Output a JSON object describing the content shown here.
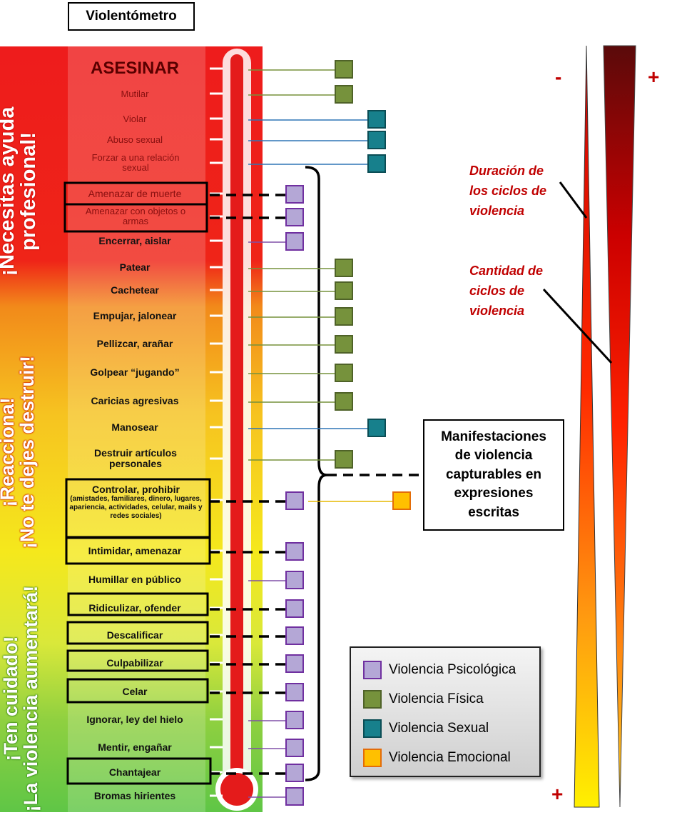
{
  "title": "Violentómetro",
  "side_labels": [
    {
      "key": "top",
      "line1": "¡Necesitas ayuda",
      "line2": "profesional!"
    },
    {
      "key": "middle",
      "line1": "¡Reacciona!",
      "line2": "¡No te dejes destruir!"
    },
    {
      "key": "bottom",
      "line1": "¡Ten cuidado!",
      "line2": "¡La violencia aumentará!"
    }
  ],
  "items": [
    {
      "label": "ASESINAR",
      "type": "fisica"
    },
    {
      "label": "Mutilar",
      "type": "fisica"
    },
    {
      "label": "Violar",
      "type": "sexual"
    },
    {
      "label": "Abuso sexual",
      "type": "sexual"
    },
    {
      "label": "Forzar a una relación sexual",
      "type": "sexual"
    },
    {
      "label": "Amenazar de muerte",
      "type": "psicologica",
      "boxed": true,
      "dashed": true
    },
    {
      "label": "Amenazar con objetos o armas",
      "type": "psicologica",
      "boxed": true,
      "dashed": true
    },
    {
      "label": "Encerrar, aislar",
      "type": "psicologica"
    },
    {
      "label": "Patear",
      "type": "fisica"
    },
    {
      "label": "Cachetear",
      "type": "fisica"
    },
    {
      "label": "Empujar, jalonear",
      "type": "fisica"
    },
    {
      "label": "Pellizcar, arañar",
      "type": "fisica"
    },
    {
      "label": "Golpear “jugando”",
      "type": "fisica"
    },
    {
      "label": "Caricias agresivas",
      "type": "fisica"
    },
    {
      "label": "Manosear",
      "type": "sexual"
    },
    {
      "label": "Destruir artículos personales",
      "type": "fisica"
    },
    {
      "label": "Controlar, prohibir",
      "sub": "(amistades, familiares, dinero, lugares, apariencia, actividades, celular, mails y redes sociales)",
      "type": "psicologica",
      "extra": "emocional",
      "boxed": true,
      "dashed": true
    },
    {
      "label": "Intimidar, amenazar",
      "type": "psicologica",
      "boxed": true,
      "dashed": true
    },
    {
      "label": "Humillar en público",
      "type": "psicologica"
    },
    {
      "label": "Ridiculizar, ofender",
      "type": "psicologica",
      "boxed": true,
      "dashed": true
    },
    {
      "label": "Descalificar",
      "type": "psicologica",
      "boxed": true,
      "dashed": true
    },
    {
      "label": "Culpabilizar",
      "type": "psicologica",
      "boxed": true,
      "dashed": true
    },
    {
      "label": "Celar",
      "type": "psicologica",
      "boxed": true,
      "dashed": true
    },
    {
      "label": "Ignorar, ley del hielo",
      "type": "psicologica"
    },
    {
      "label": "Mentir, engañar",
      "type": "psicologica"
    },
    {
      "label": "Chantajear",
      "type": "psicologica",
      "boxed": true,
      "dashed": true
    },
    {
      "label": "Bromas hirientes",
      "type": "psicologica"
    }
  ],
  "note_box": "Manifestaciones\nde violencia\ncapturables en\nexpresiones\nescritas",
  "legend": [
    {
      "label": "Violencia Psicológica",
      "type": "psicologica"
    },
    {
      "label": "Violencia Física",
      "type": "fisica"
    },
    {
      "label": "Violencia Sexual",
      "type": "sexual"
    },
    {
      "label": "Violencia Emocional",
      "type": "emocional"
    }
  ],
  "colors": {
    "psicologica": {
      "fill": "#b4a7d6",
      "border": "#7030a0"
    },
    "fisica": {
      "fill": "#76923c",
      "border": "#4f6228"
    },
    "sexual": {
      "fill": "#17808c",
      "border": "#0b4d55"
    },
    "emocional": {
      "fill": "#ffc000",
      "border": "#e36c09"
    }
  },
  "right_notes": [
    {
      "key": "duracion",
      "text": "Duración de\nlos ciclos de\nviolencia"
    },
    {
      "key": "cantidad",
      "text": "Cantidad de\nciclos de\nviolencia"
    }
  ],
  "signs": {
    "left_top": "-",
    "right_top": "+",
    "left_bottom": "+"
  }
}
